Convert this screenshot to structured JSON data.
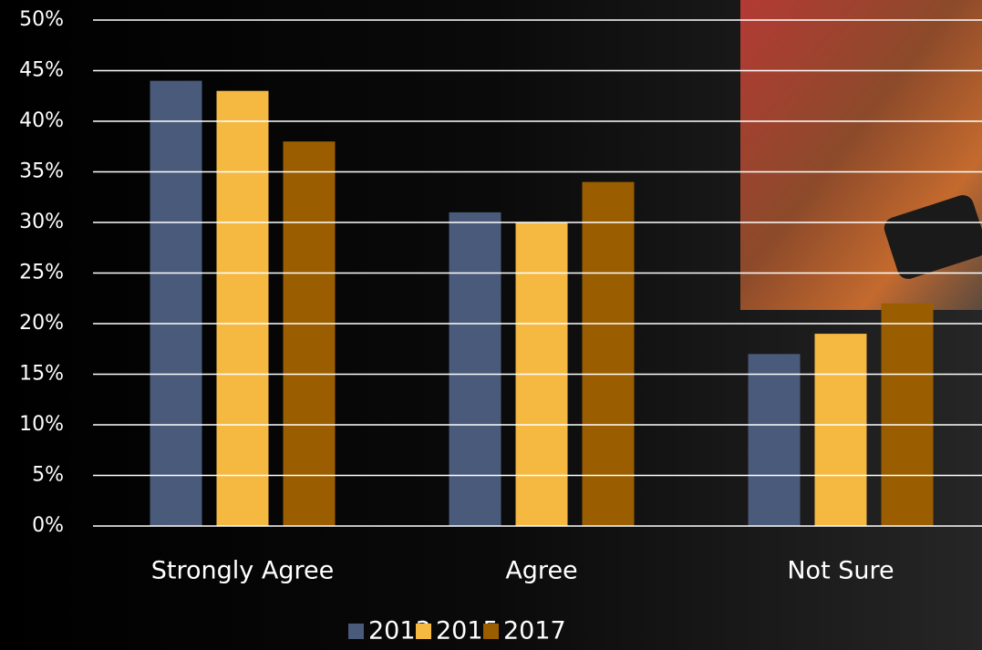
{
  "chart_data": {
    "type": "bar",
    "categories": [
      "Strongly Agree",
      "Agree",
      "Not Sure"
    ],
    "series": [
      {
        "name": "2013",
        "color": "#4a5a7a",
        "values": [
          44,
          31,
          17
        ]
      },
      {
        "name": "2015",
        "color": "#f5b942",
        "values": [
          43,
          30,
          19
        ]
      },
      {
        "name": "2017",
        "color": "#9a5e00",
        "values": [
          38,
          34,
          22
        ]
      }
    ],
    "ylim": [
      0,
      50
    ],
    "yticks": [
      {
        "value": 0,
        "label": "0%"
      },
      {
        "value": 5,
        "label": "5%"
      },
      {
        "value": 10,
        "label": "10%"
      },
      {
        "value": 15,
        "label": "15%"
      },
      {
        "value": 20,
        "label": "20%"
      },
      {
        "value": 25,
        "label": "25%"
      },
      {
        "value": 30,
        "label": "30%"
      },
      {
        "value": 35,
        "label": "35%"
      },
      {
        "value": 40,
        "label": "40%"
      },
      {
        "value": 45,
        "label": "45%"
      },
      {
        "value": 50,
        "label": "50%"
      }
    ],
    "grid": true
  }
}
